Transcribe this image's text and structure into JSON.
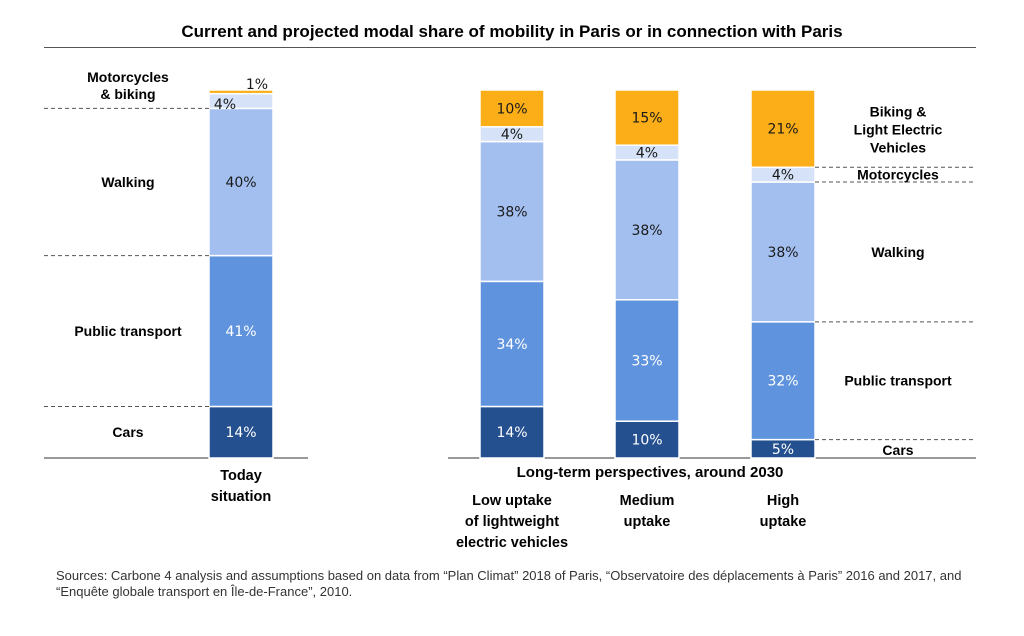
{
  "title": "Current and projected modal share of mobility in Paris or in connection with Paris",
  "group_label": "Long-term perspectives, around 2030",
  "source": "Sources: Carbone 4 analysis and assumptions based on data from “Plan Climat” 2018 of Paris, “Observatoire des déplacements à Paris” 2016 and 2017, and “Enquête globale transport en Île-de-France”, 2010.",
  "colors": {
    "cars": "#24508f",
    "public_transport": "#5f93dd",
    "walking": "#a3bff0",
    "motorcycles": "#d6e2f8",
    "biking": "#fbae17"
  },
  "chart_data": {
    "type": "bar",
    "stacked": true,
    "categories": [
      [
        "Today",
        "situation"
      ],
      [
        "Low uptake",
        "of lightweight",
        "electric vehicles"
      ],
      [
        "Medium",
        "uptake"
      ],
      [
        "High",
        "uptake"
      ]
    ],
    "series": [
      {
        "name": "Cars",
        "values": [
          14,
          14,
          10,
          5
        ],
        "labels": [
          "14%",
          "14%",
          "10%",
          "5%"
        ]
      },
      {
        "name": "Public transport",
        "values": [
          41,
          34,
          33,
          32
        ],
        "labels": [
          "41%",
          "34%",
          "33%",
          "32%"
        ]
      },
      {
        "name": "Walking",
        "values": [
          40,
          38,
          38,
          38
        ],
        "labels": [
          "40%",
          "38%",
          "38%",
          "38%"
        ]
      },
      {
        "name": "Motorcycles",
        "values": [
          4,
          4,
          4,
          4
        ],
        "labels": [
          "4%",
          "4%",
          "4%",
          "4%"
        ]
      },
      {
        "name": "Biking & Light Electric Vehicles",
        "values": [
          1,
          10,
          15,
          21
        ],
        "labels": [
          "1%",
          "10%",
          "15%",
          "21%"
        ]
      }
    ],
    "left_category_labels": {
      "cars": [
        "Cars"
      ],
      "public_transport": [
        "Public transport"
      ],
      "walking": [
        "Walking"
      ],
      "motorcycles_biking": [
        "Motorcycles",
        "& biking"
      ]
    },
    "right_category_labels": {
      "biking": [
        "Biking &",
        "Light Electric",
        "Vehicles"
      ],
      "motorcycles": [
        "Motorcycles"
      ],
      "walking": [
        "Walking"
      ],
      "public_transport": [
        "Public transport"
      ],
      "cars": [
        "Cars"
      ]
    },
    "ylim": [
      0,
      100
    ]
  }
}
